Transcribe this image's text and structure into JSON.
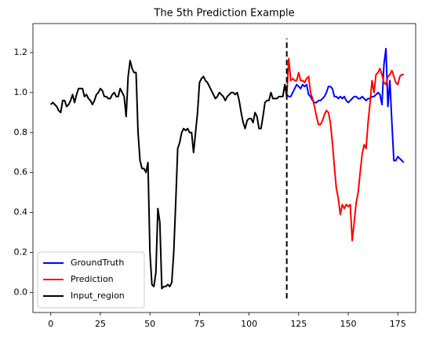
{
  "chart_data": {
    "type": "line",
    "title": "The 5th Prediction Example",
    "series": [
      {
        "name": "GroundTruth",
        "color": "#0000ff",
        "x": [
          119,
          120,
          121,
          122,
          123,
          124,
          125,
          126,
          127,
          128,
          129,
          130,
          131,
          132,
          133,
          134,
          135,
          136,
          137,
          138,
          139,
          140,
          141,
          142,
          143,
          144,
          145,
          146,
          147,
          148,
          149,
          150,
          151,
          152,
          153,
          154,
          155,
          156,
          157,
          158,
          159,
          160,
          161,
          162,
          163,
          164,
          165,
          166,
          167,
          168,
          169,
          170,
          171,
          172,
          173,
          174,
          175,
          176,
          177,
          178
        ],
        "values": [
          0.99,
          0.98,
          0.98,
          1.0,
          1.02,
          1.04,
          1.03,
          1.02,
          1.04,
          1.03,
          1.04,
          0.99,
          0.98,
          0.96,
          0.95,
          0.95,
          0.96,
          0.96,
          0.97,
          0.98,
          1.0,
          1.03,
          1.03,
          1.02,
          0.98,
          0.98,
          0.97,
          0.98,
          0.97,
          0.98,
          0.96,
          0.95,
          0.96,
          0.97,
          0.98,
          0.98,
          0.97,
          0.97,
          0.98,
          0.97,
          0.96,
          0.97,
          0.97,
          0.98,
          0.98,
          0.99,
          1.0,
          0.99,
          0.94,
          1.14,
          1.22,
          0.93,
          1.06,
          0.85,
          0.66,
          0.66,
          0.68,
          0.67,
          0.66,
          0.65
        ]
      },
      {
        "name": "Prediction",
        "color": "#ff0000",
        "x": [
          119,
          120,
          121,
          122,
          123,
          124,
          125,
          126,
          127,
          128,
          129,
          130,
          131,
          132,
          133,
          134,
          135,
          136,
          137,
          138,
          139,
          140,
          141,
          142,
          143,
          144,
          145,
          146,
          147,
          148,
          149,
          150,
          151,
          152,
          153,
          154,
          155,
          156,
          157,
          158,
          159,
          160,
          161,
          162,
          163,
          164,
          165,
          166,
          167,
          168,
          169,
          170,
          171,
          172,
          173,
          174,
          175,
          176,
          177,
          178
        ],
        "values": [
          0.98,
          1.17,
          1.06,
          1.07,
          1.06,
          1.06,
          1.1,
          1.06,
          1.06,
          1.05,
          1.07,
          1.08,
          1.0,
          0.97,
          0.93,
          0.88,
          0.84,
          0.84,
          0.86,
          0.89,
          0.91,
          0.9,
          0.85,
          0.75,
          0.63,
          0.52,
          0.47,
          0.39,
          0.44,
          0.42,
          0.44,
          0.43,
          0.44,
          0.26,
          0.35,
          0.45,
          0.5,
          0.6,
          0.69,
          0.74,
          0.72,
          0.85,
          0.95,
          1.06,
          1.0,
          1.09,
          1.1,
          1.12,
          1.09,
          1.05,
          1.04,
          1.08,
          1.09,
          1.11,
          1.08,
          1.05,
          1.04,
          1.08,
          1.09,
          1.09
        ]
      },
      {
        "name": "Input_region",
        "color": "#000000",
        "x": [
          0,
          1,
          2,
          3,
          4,
          5,
          6,
          7,
          8,
          9,
          10,
          11,
          12,
          13,
          14,
          15,
          16,
          17,
          18,
          19,
          20,
          21,
          22,
          23,
          24,
          25,
          26,
          27,
          28,
          29,
          30,
          31,
          32,
          33,
          34,
          35,
          36,
          37,
          38,
          39,
          40,
          41,
          42,
          43,
          44,
          45,
          46,
          47,
          48,
          49,
          50,
          51,
          52,
          53,
          54,
          55,
          56,
          57,
          58,
          59,
          60,
          61,
          62,
          63,
          64,
          65,
          66,
          67,
          68,
          69,
          70,
          71,
          72,
          73,
          74,
          75,
          76,
          77,
          78,
          79,
          80,
          81,
          82,
          83,
          84,
          85,
          86,
          87,
          88,
          89,
          90,
          91,
          92,
          93,
          94,
          95,
          96,
          97,
          98,
          99,
          100,
          101,
          102,
          103,
          104,
          105,
          106,
          107,
          108,
          109,
          110,
          111,
          112,
          113,
          114,
          115,
          116,
          117,
          118,
          119
        ],
        "values": [
          0.94,
          0.95,
          0.94,
          0.93,
          0.91,
          0.9,
          0.96,
          0.96,
          0.93,
          0.94,
          0.96,
          0.99,
          0.95,
          0.99,
          1.02,
          1.02,
          1.02,
          0.98,
          0.99,
          0.97,
          0.96,
          0.94,
          0.96,
          0.99,
          1.0,
          1.02,
          1.01,
          0.98,
          0.98,
          0.97,
          0.97,
          0.99,
          1.0,
          0.98,
          0.98,
          1.02,
          1.0,
          0.98,
          0.88,
          1.08,
          1.16,
          1.12,
          1.1,
          1.1,
          0.8,
          0.66,
          0.62,
          0.62,
          0.6,
          0.65,
          0.2,
          0.04,
          0.03,
          0.1,
          0.42,
          0.35,
          0.02,
          0.03,
          0.03,
          0.04,
          0.03,
          0.05,
          0.2,
          0.45,
          0.72,
          0.75,
          0.8,
          0.82,
          0.81,
          0.82,
          0.8,
          0.8,
          0.7,
          0.8,
          0.9,
          1.05,
          1.07,
          1.08,
          1.06,
          1.05,
          1.03,
          1.01,
          0.99,
          0.97,
          0.98,
          1.0,
          0.99,
          0.98,
          0.96,
          0.98,
          0.99,
          1.0,
          1.0,
          0.99,
          1.0,
          0.96,
          0.9,
          0.85,
          0.82,
          0.86,
          0.87,
          0.87,
          0.85,
          0.9,
          0.88,
          0.82,
          0.82,
          0.88,
          0.95,
          0.96,
          0.96,
          1.0,
          0.97,
          0.97,
          0.97,
          0.98,
          0.98,
          0.98,
          1.04,
          0.98
        ]
      }
    ],
    "vline": {
      "x": 119,
      "ymin": -0.03,
      "ymax": 1.27,
      "color": "#000000"
    },
    "xlim": [
      -9,
      184
    ],
    "xticks": [
      0,
      25,
      50,
      75,
      100,
      125,
      150,
      175
    ],
    "ylim": [
      -0.1,
      1.345
    ],
    "yticks": [
      {
        "value": 0,
        "label": "0.0"
      },
      0.2,
      0.4,
      0.6,
      0.8,
      {
        "value": 1,
        "label": "1.0"
      },
      1.2
    ],
    "legend": "lower left"
  }
}
